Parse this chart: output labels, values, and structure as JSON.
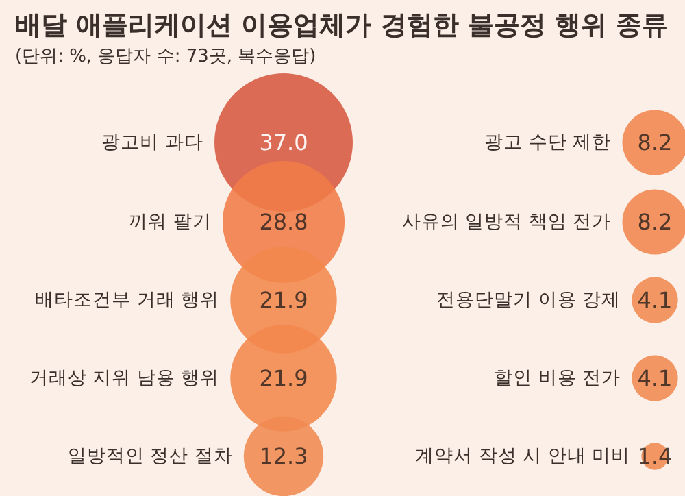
{
  "chart_data": {
    "type": "other",
    "title": "배달 애플리케이션 이용업체가 경험한 불공정 행위 종류",
    "subtitle": "(단위: %, 응답자 수: 73곳, 복수응답)",
    "categories": [
      "광고비 과다",
      "끼워 팔기",
      "배타조건부 거래 행위",
      "거래상 지위 남용 행위",
      "일방적인 정산 절차",
      "광고 수단 제한",
      "사유의 일방적 책임 전가",
      "전용단말기 이용 강제",
      "할인 비용 전가",
      "계약서 작성 시 안내 미비"
    ],
    "values": [
      37.0,
      28.8,
      21.9,
      21.9,
      12.3,
      8.2,
      8.2,
      4.1,
      4.1,
      1.4
    ],
    "colors": [
      "#d9604a",
      "#f07c48",
      "#f2884c",
      "#f2884c",
      "#f08a52",
      "#f0864e",
      "#f0864e",
      "#f08a52",
      "#f08a52",
      "#f08a52"
    ],
    "value_labels": [
      "37.0",
      "28.8",
      "21.9",
      "21.9",
      "12.3",
      "8.2",
      "8.2",
      "4.1",
      "4.1",
      "1.4"
    ]
  }
}
